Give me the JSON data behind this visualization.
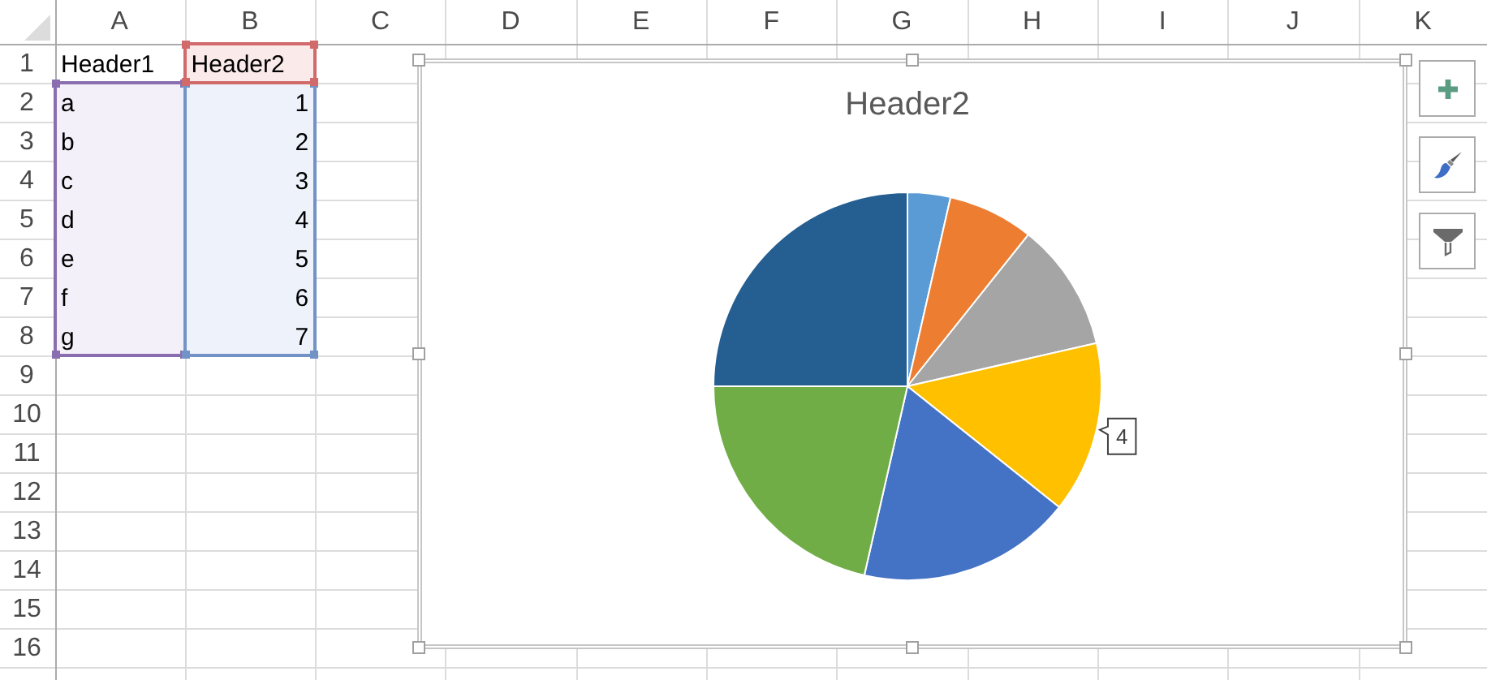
{
  "chart_data": {
    "type": "pie",
    "title": "Header2",
    "categories": [
      null,
      null,
      null,
      null,
      null,
      null,
      null
    ],
    "values": [
      1,
      2,
      3,
      4,
      5,
      6,
      7
    ],
    "colors": [
      "#5b9bd5",
      "#ed7d31",
      "#a5a5a5",
      "#ffc000",
      "#4472c4",
      "#70ad47",
      "#255e91"
    ],
    "value_labels": [
      null,
      null,
      null,
      "4",
      null,
      null,
      null
    ],
    "data_labels": true,
    "annotations": [
      "A",
      "B",
      "C",
      "D",
      "E",
      "F",
      "G",
      "H",
      "I",
      "J",
      "K",
      "1",
      "2",
      "3",
      "4",
      "5",
      "6",
      "7",
      "8",
      "9",
      "10",
      "11",
      "12",
      "13",
      "14",
      "15",
      "16",
      "Header1",
      "Header2",
      "a",
      "b",
      "c",
      "d",
      "e",
      "f",
      "g"
    ]
  }
}
